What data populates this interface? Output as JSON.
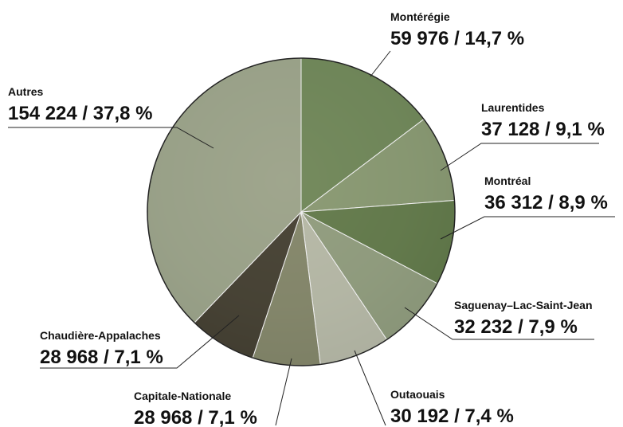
{
  "chart_data": {
    "type": "pie",
    "categories": [
      "Montérégie",
      "Laurentides",
      "Montréal",
      "Saguenay–Lac-Saint-Jean",
      "Outaouais",
      "Capitale-Nationale",
      "Chaudière-Appalaches",
      "Autres"
    ],
    "values": [
      59976,
      37128,
      36312,
      32232,
      30192,
      28968,
      28968,
      154224
    ],
    "value_labels": [
      "59 976 / 14,7 %",
      "37 128 / 9,1 %",
      "36 312 / 8,9 %",
      "32 232 / 7,9 %",
      "30 192 / 7,4 %",
      "28 968 / 7,1 %",
      "28 968 / 7,1 %",
      "154 224 / 37,8 %"
    ],
    "colors": [
      "#6f8a5a",
      "#8fa07a",
      "#5f7a48",
      "#9aa58a",
      "#c9c9bd",
      "#8a8a70",
      "#3a302a",
      "#a7ad98"
    ]
  }
}
